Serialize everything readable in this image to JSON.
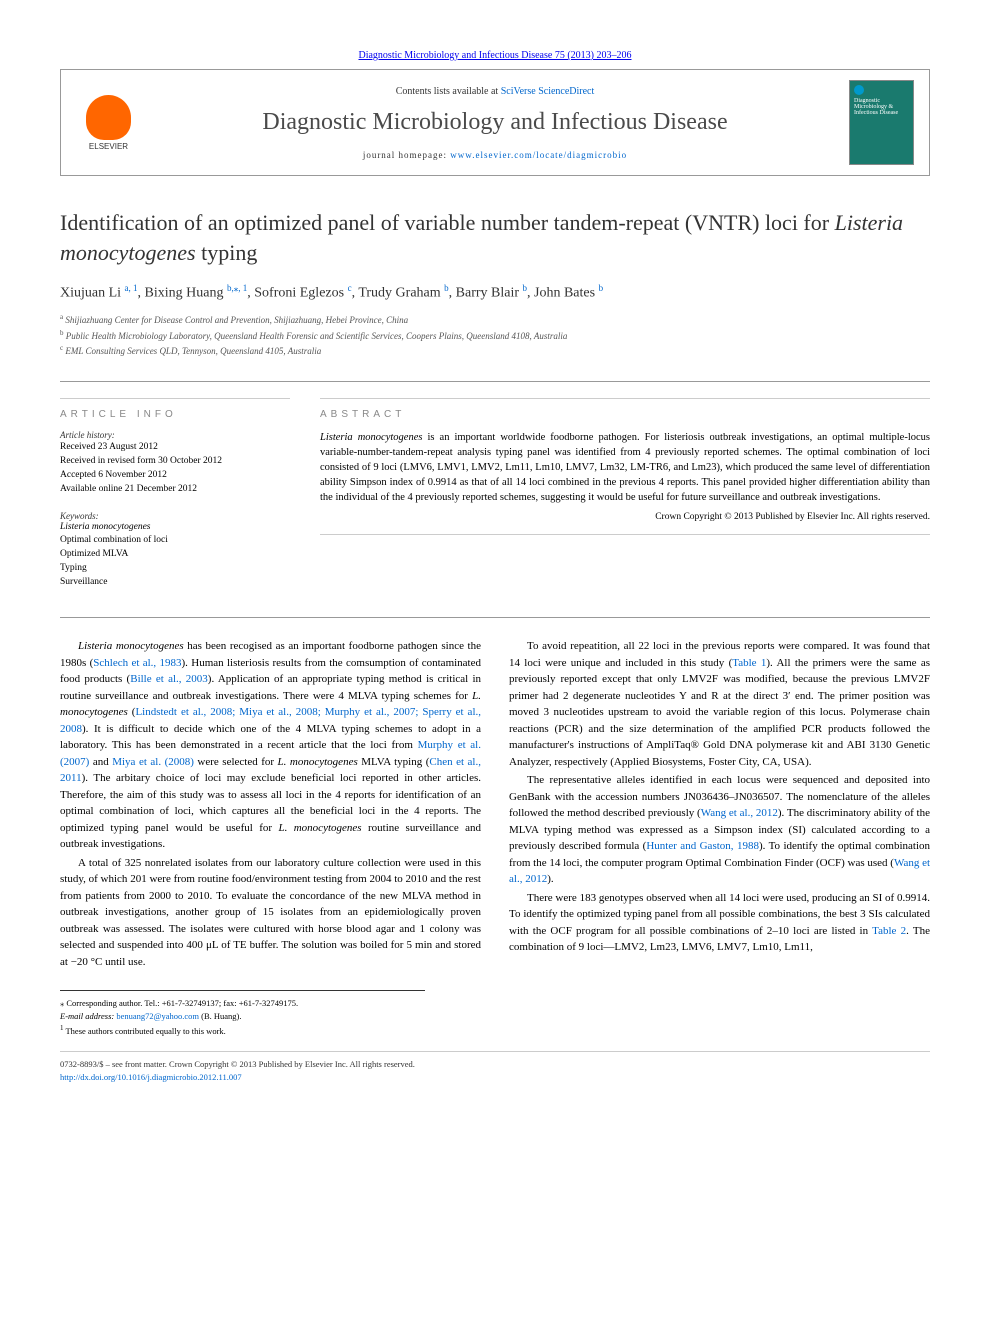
{
  "journal_ref": "Diagnostic Microbiology and Infectious Disease 75 (2013) 203–206",
  "header": {
    "contents_prefix": "Contents lists available at ",
    "contents_link": "SciVerse ScienceDirect",
    "journal_name": "Diagnostic Microbiology and Infectious Disease",
    "homepage_prefix": "journal homepage: ",
    "homepage_link": "www.elsevier.com/locate/diagmicrobio",
    "elsevier_label": "ELSEVIER",
    "cover_text": "Diagnostic Microbiology & Infectious Disease"
  },
  "title_pre": "Identification of an optimized panel of variable number tandem-repeat (VNTR) loci for ",
  "title_em": "Listeria monocytogenes",
  "title_post": " typing",
  "authors_html_parts": {
    "a1": "Xiujuan Li ",
    "a1_sup": "a, 1",
    "a2": ", Bixing Huang ",
    "a2_sup": "b,",
    "a2_star": "⁎",
    "a2_sup2": ", 1",
    "a3": ", Sofroni Eglezos ",
    "a3_sup": "c",
    "a4": ", Trudy Graham ",
    "a4_sup": "b",
    "a5": ", Barry Blair ",
    "a5_sup": "b",
    "a6": ", John Bates ",
    "a6_sup": "b"
  },
  "affiliations": {
    "a": "Shijiazhuang Center for Disease Control and Prevention, Shijiazhuang, Hebei Province, China",
    "b": "Public Health Microbiology Laboratory, Queensland Health Forensic and Scientific Services, Coopers Plains, Queensland 4108, Australia",
    "c": "EML Consulting Services QLD, Tennyson, Queensland 4105, Australia"
  },
  "info": {
    "heading_info": "ARTICLE INFO",
    "history_label": "Article history:",
    "history_1": "Received 23 August 2012",
    "history_2": "Received in revised form 30 October 2012",
    "history_3": "Accepted 6 November 2012",
    "history_4": "Available online 21 December 2012",
    "keywords_label": "Keywords:",
    "kw_1_em": "Listeria monocytogenes",
    "kw_2": "Optimal combination of loci",
    "kw_3": "Optimized MLVA",
    "kw_4": "Typing",
    "kw_5": "Surveillance"
  },
  "abstract": {
    "heading": "ABSTRACT",
    "t1_em": "Listeria monocytogenes",
    "t1": " is an important worldwide foodborne pathogen. For listeriosis outbreak investigations, an optimal multiple-locus variable-number-tandem-repeat analysis typing panel was identified from 4 previously reported schemes. The optimal combination of loci consisted of 9 loci (LMV6, LMV1, LMV2, Lm11, Lm10, LMV7, Lm32, LM-TR6, and Lm23), which produced the same level of differentiation ability Simpson index of 0.9914 as that of all 14 loci combined in the previous 4 reports. This panel provided higher differentiation ability than the individual of the 4 previously reported schemes, suggesting it would be useful for future surveillance and outbreak investigations.",
    "copyright": "Crown Copyright © 2013 Published by Elsevier Inc. All rights reserved."
  },
  "body": {
    "p1_a_em": "Listeria monocytogenes",
    "p1_a": " has been recogised as an important foodborne pathogen since the 1980s (",
    "p1_link1": "Schlech et al., 1983",
    "p1_b": "). Human listeriosis results from the comsumption of contaminated food products (",
    "p1_link2": "Bille et al., 2003",
    "p1_c": "). Application of an appropriate typing method is critical in routine surveillance and outbreak investigations. There were 4 MLVA typing schemes for ",
    "p1_c_em": "L. monocytogenes",
    "p1_d": " (",
    "p1_link3": "Lindstedt et al., 2008; Miya et al., 2008; Murphy et al., 2007; Sperry et al., 2008",
    "p1_e": "). It is difficult to decide which one of the 4 MLVA typing schemes to adopt in a laboratory. This has been demonstrated in a recent article that the loci from ",
    "p1_link4": "Murphy et al. (2007)",
    "p1_f": " and ",
    "p1_link5": "Miya et al. (2008)",
    "p1_g": " were selected for ",
    "p1_g_em": "L. monocytogenes",
    "p1_h": " MLVA typing (",
    "p1_link6": "Chen et al., 2011",
    "p1_i": "). The arbitary choice of loci may exclude beneficial loci reported in other articles. Therefore, the aim of this study was to assess all loci in the 4 reports for identification of an optimal combination of loci, which captures all the beneficial loci in the 4 reports. The optimized typing panel would be useful for ",
    "p1_i_em": "L. monocytogenes",
    "p1_j": " routine surveillance and outbreak investigations.",
    "p2": "A total of 325 nonrelated isolates from our laboratory culture collection were used in this study, of which 201 were from routine food/environment testing from 2004 to 2010 and the rest from patients from 2000 to 2010. To evaluate the concordance of the new MLVA method in outbreak investigations, another group of 15 isolates from an epidemiologically proven outbreak was assessed. The isolates were cultured with horse blood agar and 1 colony was selected and suspended into 400 μL of TE buffer. The solution was boiled for 5 min and stored at −20 °C until use.",
    "p3_a": "To avoid repeatition, all 22 loci in the previous reports were compared. It was found that 14 loci were unique and included in this study (",
    "p3_link1": "Table 1",
    "p3_b": "). All the primers were the same as previously reported except that only LMV2F was modified, because the previous LMV2F primer had 2 degenerate nucleotides Y and R at the direct 3′ end. The primer position was moved 3 nucleotides upstream to avoid the variable region of this locus. Polymerase chain reactions (PCR) and the size determination of the amplified PCR products followed the manufacturer's instructions of AmpliTaq® Gold DNA polymerase kit and ABI 3130 Genetic Analyzer, respectively (Applied Biosystems, Foster City, CA, USA).",
    "p4_a": "The representative alleles identified in each locus were sequenced and deposited into GenBank with the accession numbers JN036436–JN036507. The nomenclature of the alleles followed the method described previously (",
    "p4_link1": "Wang et al., 2012",
    "p4_b": "). The discriminatory ability of the MLVA typing method was expressed as a Simpson index (SI) calculated according to a previously described formula (",
    "p4_link2": "Hunter and Gaston, 1988",
    "p4_c": "). To identify the optimal combination from the 14 loci, the computer program Optimal Combination Finder (OCF) was used (",
    "p4_link3": "Wang et al., 2012",
    "p4_d": ").",
    "p5_a": "There were 183 genotypes observed when all 14 loci were used, producing an SI of 0.9914. To identify the optimized typing panel from all possible combinations, the best 3 SIs calculated with the OCF program for all possible combinations of 2–10 loci are listed in ",
    "p5_link1": "Table 2",
    "p5_b": ". The combination of 9 loci—LMV2, Lm23, LMV6, LMV7, Lm10, Lm11,"
  },
  "footnotes": {
    "corr_label": "⁎ Corresponding author. Tel.: +61-7-32749137; fax: +61-7-32749175.",
    "email_label": "E-mail address:",
    "email": "benuang72@yahoo.com",
    "email_who": " (B. Huang).",
    "equal": "These authors contributed equally to this work."
  },
  "bottom": {
    "front": "0732-8893/$ – see front matter. Crown Copyright © 2013 Published by Elsevier Inc. All rights reserved.",
    "doi": "http://dx.doi.org/10.1016/j.diagmicrobio.2012.11.007"
  },
  "colors": {
    "link": "#0066cc",
    "elsevier_orange": "#ff6600",
    "cover_bg": "#1a7a6e"
  }
}
